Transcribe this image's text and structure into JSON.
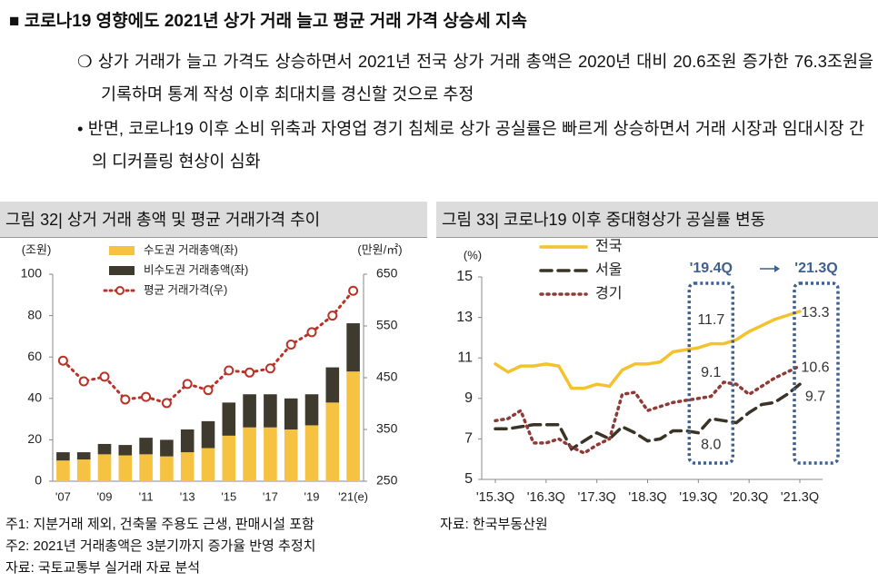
{
  "header": {
    "title": "코로나19 영향에도 2021년 상가 거래 늘고 평균 거래 가격 상승세 지속"
  },
  "bullets": [
    "상가 거래가 늘고 가격도 상승하면서 2021년 전국 상가 거래 총액은 2020년 대비 20.6조원 증가한 76.3조원을 기록하며 통계 작성 이후 최대치를 경신할 것으로 추정",
    "반면, 코로나19 이후 소비 위축과 자영업 경기 침체로 상가 공실률은 빠르게 상승하면서 거래 시장과 임대시장 간의 디커플링 현상이 심화"
  ],
  "chart_data": [
    {
      "type": "bar",
      "title": "그림 32| 상거 거래 총액 및 평균 거래가격 추이",
      "y_label": "(조원)",
      "y2_label": "(만원/㎡)",
      "stacked": true,
      "categories": [
        "'07",
        null,
        "'09",
        null,
        "'11",
        null,
        "'13",
        null,
        "'15",
        null,
        "'17",
        null,
        "'19",
        null,
        "'21(e)"
      ],
      "series": [
        {
          "name": "수도권 거래총액(좌)",
          "color": "#f6c242",
          "values": [
            10,
            10.5,
            13,
            12.5,
            13,
            12,
            14,
            16,
            22,
            26,
            26,
            25,
            27,
            38,
            53
          ]
        },
        {
          "name": "비수도권 거래총액(좌)",
          "color": "#3f3a2e",
          "values": [
            4,
            3.5,
            5,
            5,
            8,
            8,
            11,
            13,
            16,
            16,
            16,
            15,
            15,
            17,
            23.3
          ]
        },
        {
          "name": "평균 거래가격(우)",
          "color": "#b83228",
          "type": "line",
          "axis": "y2",
          "values": [
            483,
            443,
            452,
            408,
            413,
            401,
            438,
            426,
            464,
            460,
            468,
            514,
            538,
            570,
            618
          ]
        }
      ],
      "ylim": [
        0,
        100
      ],
      "yticks": [
        0,
        20,
        40,
        60,
        80,
        100
      ],
      "y2lim": [
        250,
        650
      ],
      "y2ticks": [
        250,
        350,
        450,
        550,
        650
      ],
      "notes": [
        "주1: 지분거래 제외, 건축물 주용도 근생, 판매시설 포함",
        "주2: 2021년 거래총액은 3분기까지 증가율 반영 추정치",
        "자료: 국토교통부 실거래 자료 분석"
      ]
    },
    {
      "type": "line",
      "title": "그림 33| 코로나19 이후 중대형상가 공실률 변동",
      "y_label": "(%)",
      "categories": [
        "'15.3Q",
        null,
        null,
        null,
        "'16.3Q",
        null,
        null,
        null,
        "'17.3Q",
        null,
        null,
        null,
        "'18.3Q",
        null,
        null,
        null,
        "'19.3Q",
        null,
        null,
        null,
        "'20.3Q",
        null,
        null,
        null,
        "'21.3Q"
      ],
      "series": [
        {
          "name": "전국",
          "color": "#f4c22f",
          "dash": "solid",
          "values": [
            10.7,
            10.3,
            10.6,
            10.6,
            10.7,
            10.6,
            9.5,
            9.5,
            9.7,
            9.6,
            10.4,
            10.7,
            10.7,
            10.8,
            11.3,
            11.4,
            11.5,
            11.7,
            11.7,
            11.9,
            12.3,
            12.6,
            12.9,
            13.1,
            13.3
          ],
          "value_labels": [
            null,
            null,
            null,
            null,
            null,
            null,
            null,
            null,
            null,
            null,
            null,
            null,
            null,
            null,
            null,
            null,
            null,
            "11.7",
            null,
            null,
            null,
            null,
            null,
            null,
            "13.3"
          ]
        },
        {
          "name": "서울",
          "color": "#3a3326",
          "dash": "dashed",
          "values": [
            7.5,
            7.5,
            7.6,
            7.7,
            7.7,
            7.7,
            6.5,
            6.9,
            7.3,
            7.0,
            7.6,
            7.3,
            6.9,
            7.0,
            7.4,
            7.4,
            7.3,
            8.0,
            7.9,
            7.8,
            8.3,
            8.7,
            8.8,
            9.2,
            9.7
          ],
          "value_labels": [
            null,
            null,
            null,
            null,
            null,
            null,
            null,
            null,
            null,
            null,
            null,
            null,
            null,
            null,
            null,
            null,
            null,
            "8.0",
            null,
            null,
            null,
            null,
            null,
            null,
            "9.7"
          ]
        },
        {
          "name": "경기",
          "color": "#8e3b38",
          "dash": "dotted",
          "values": [
            7.9,
            8.0,
            8.4,
            6.8,
            6.8,
            7.0,
            6.6,
            6.3,
            6.7,
            7.0,
            9.2,
            9.3,
            8.4,
            8.6,
            8.8,
            8.9,
            9.0,
            9.1,
            9.8,
            9.7,
            9.2,
            9.6,
            10.0,
            10.3,
            10.6
          ],
          "value_labels": [
            null,
            null,
            null,
            null,
            null,
            null,
            null,
            null,
            null,
            null,
            null,
            null,
            null,
            null,
            null,
            null,
            null,
            "9.1",
            null,
            null,
            null,
            null,
            null,
            null,
            "10.6"
          ]
        }
      ],
      "annotations": [
        "'19.4Q",
        "'21.3Q"
      ],
      "ylim": [
        5,
        15
      ],
      "yticks": [
        5,
        7,
        9,
        11,
        13,
        15
      ],
      "notes": [
        "자료: 한국부동산원"
      ]
    }
  ]
}
